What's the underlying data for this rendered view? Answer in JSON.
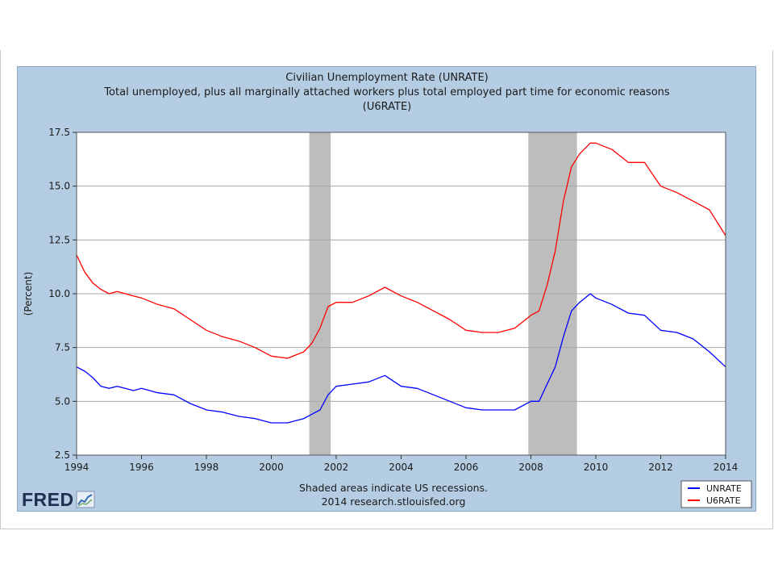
{
  "chart_data": {
    "type": "line",
    "title": "Civilian Unemployment Rate (UNRATE)",
    "subtitle_lines": [
      "Total unemployed, plus all marginally attached workers plus total employed part time for economic reasons",
      "(U6RATE)"
    ],
    "ylabel": "(Percent)",
    "xlim": [
      1994,
      2014
    ],
    "ylim": [
      2.5,
      17.5
    ],
    "x_ticks": [
      "1994",
      "1996",
      "1998",
      "2000",
      "2002",
      "2004",
      "2006",
      "2008",
      "2010",
      "2012",
      "2014"
    ],
    "y_ticks": [
      "2.5",
      "5.0",
      "7.5",
      "10.0",
      "12.5",
      "15.0",
      "17.5"
    ],
    "grid": true,
    "recessions": [
      [
        2001.17,
        2001.83
      ],
      [
        2007.92,
        2009.42
      ]
    ],
    "legend_position": "bottom-right",
    "series": [
      {
        "name": "UNRATE",
        "color": "#0000ff",
        "x": [
          1994.0,
          1994.25,
          1994.5,
          1994.75,
          1995.0,
          1995.25,
          1995.5,
          1995.75,
          1996.0,
          1996.5,
          1997.0,
          1997.5,
          1998.0,
          1998.5,
          1999.0,
          1999.5,
          2000.0,
          2000.5,
          2001.0,
          2001.25,
          2001.5,
          2001.75,
          2002.0,
          2002.5,
          2003.0,
          2003.5,
          2004.0,
          2004.5,
          2005.0,
          2005.5,
          2006.0,
          2006.5,
          2007.0,
          2007.5,
          2008.0,
          2008.25,
          2008.5,
          2008.75,
          2009.0,
          2009.25,
          2009.5,
          2009.83,
          2010.0,
          2010.5,
          2011.0,
          2011.5,
          2012.0,
          2012.5,
          2013.0,
          2013.5,
          2014.0
        ],
        "y": [
          6.6,
          6.4,
          6.1,
          5.7,
          5.6,
          5.7,
          5.6,
          5.5,
          5.6,
          5.4,
          5.3,
          4.9,
          4.6,
          4.5,
          4.3,
          4.2,
          4.0,
          4.0,
          4.2,
          4.4,
          4.6,
          5.3,
          5.7,
          5.8,
          5.9,
          6.2,
          5.7,
          5.6,
          5.3,
          5.0,
          4.7,
          4.6,
          4.6,
          4.6,
          5.0,
          5.0,
          5.8,
          6.6,
          8.0,
          9.2,
          9.6,
          10.0,
          9.8,
          9.5,
          9.1,
          9.0,
          8.3,
          8.2,
          7.9,
          7.3,
          6.6
        ]
      },
      {
        "name": "U6RATE",
        "color": "#ff0000",
        "x": [
          1994.0,
          1994.25,
          1994.5,
          1994.75,
          1995.0,
          1995.25,
          1995.5,
          1995.75,
          1996.0,
          1996.5,
          1997.0,
          1997.5,
          1998.0,
          1998.5,
          1999.0,
          1999.5,
          2000.0,
          2000.5,
          2001.0,
          2001.25,
          2001.5,
          2001.75,
          2002.0,
          2002.5,
          2003.0,
          2003.5,
          2004.0,
          2004.5,
          2005.0,
          2005.5,
          2006.0,
          2006.5,
          2007.0,
          2007.5,
          2008.0,
          2008.25,
          2008.5,
          2008.75,
          2009.0,
          2009.25,
          2009.5,
          2009.83,
          2010.0,
          2010.5,
          2011.0,
          2011.5,
          2012.0,
          2012.5,
          2013.0,
          2013.5,
          2014.0
        ],
        "y": [
          11.8,
          11.0,
          10.5,
          10.2,
          10.0,
          10.1,
          10.0,
          9.9,
          9.8,
          9.5,
          9.3,
          8.8,
          8.3,
          8.0,
          7.8,
          7.5,
          7.1,
          7.0,
          7.3,
          7.7,
          8.4,
          9.4,
          9.6,
          9.6,
          9.9,
          10.3,
          9.9,
          9.6,
          9.2,
          8.8,
          8.3,
          8.2,
          8.2,
          8.4,
          9.0,
          9.2,
          10.4,
          12.0,
          14.3,
          15.9,
          16.5,
          17.0,
          17.0,
          16.7,
          16.1,
          16.1,
          15.0,
          14.7,
          14.3,
          13.9,
          12.7
        ]
      }
    ],
    "footnote_lines": [
      "Shaded areas indicate US recessions.",
      "2014 research.stlouisfed.org"
    ]
  },
  "logo_text": "FRED",
  "logo_icon": "line-chart-icon",
  "colors": {
    "panel_bg": "#b4cde3",
    "plot_bg": "#ffffff",
    "grid": "#a9a9a9",
    "recession": "#bdbdbd",
    "logo": "#1f2f4f"
  }
}
